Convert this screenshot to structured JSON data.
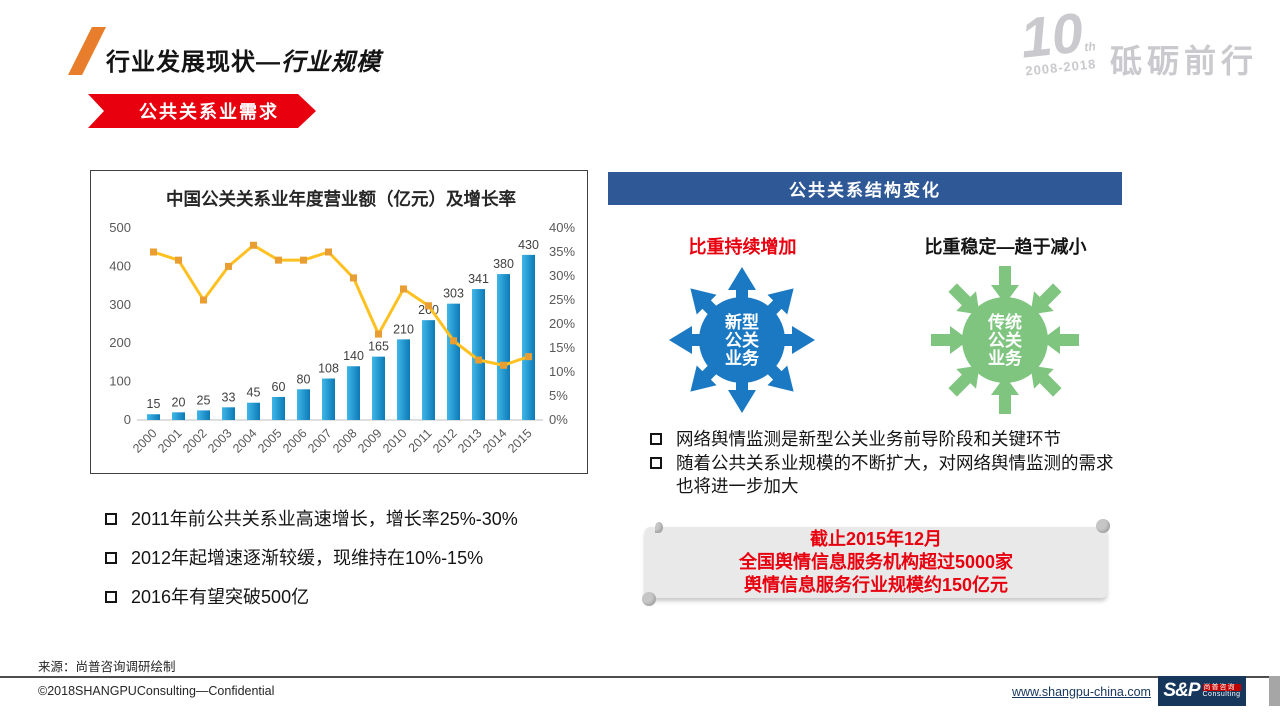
{
  "slide": {
    "title_main": "行业发展现状—",
    "title_em": "行业规模",
    "section_banner": "公共关系业需求"
  },
  "brand": {
    "anniv_number": "10",
    "anniv_suffix": "th",
    "anniv_years": "2008-2018",
    "anniv_slogan": "砥砺前行"
  },
  "chart_data": {
    "type": "bar",
    "title": "中国公关关系业年度营业额（亿元）及增长率",
    "categories": [
      "2000",
      "2001",
      "2002",
      "2003",
      "2004",
      "2005",
      "2006",
      "2007",
      "2008",
      "2009",
      "2010",
      "2011",
      "2012",
      "2013",
      "2014",
      "2015"
    ],
    "series": [
      {
        "name": "年度营业额（亿元）",
        "type": "bar",
        "values": [
          15,
          20,
          25,
          33,
          45,
          60,
          80,
          108,
          140,
          165,
          210,
          260,
          303,
          341,
          380,
          430
        ]
      },
      {
        "name": "增长率",
        "type": "line",
        "values": [
          35,
          33.3,
          25,
          32,
          36.4,
          33.3,
          33.3,
          35,
          29.6,
          17.9,
          27.3,
          23.8,
          16.5,
          12.5,
          11.4,
          13.2
        ]
      }
    ],
    "y_left": {
      "min": 0,
      "max": 500,
      "step": 100
    },
    "y_right": {
      "min": 0,
      "max": 40,
      "step": 5,
      "unit": "%"
    },
    "grid": false,
    "legend": false,
    "bar_color_start": "#3FB7E8",
    "bar_color_end": "#0C79B6",
    "line_color": "#FFC121",
    "marker_color": "#E89E33"
  },
  "left_notes": [
    "2011年前公共关系业高速增长，增长率25%-30%",
    "2012年起增速逐渐较缓，现维持在10%-15%",
    "2016年有望突破500亿"
  ],
  "structure_panel": {
    "header": "公共关系结构变化",
    "increase_label": "比重持续增加",
    "decrease_label": "比重稳定—趋于减小",
    "new_pr": {
      "lines": [
        "新型",
        "公关",
        "业务"
      ],
      "color": "#1B79C4",
      "direction": "out"
    },
    "traditional_pr": {
      "lines": [
        "传统",
        "公关",
        "业务"
      ],
      "color": "#7FC580",
      "direction": "in"
    },
    "notes": [
      "网络舆情监测是新型公关业务前导阶段和关键环节",
      "随着公共关系业规模的不断扩大，对网络舆情监测的需求也将进一步加大"
    ],
    "callout": [
      "截止2015年12月",
      "全国舆情信息服务机构超过5000家",
      "舆情信息服务行业规模约150亿元"
    ]
  },
  "footer": {
    "source": "来源：尚普咨询调研绘制",
    "copyright": "©2018SHANGPUConsulting—Confidential",
    "website": "www.shangpu-china.com",
    "logo_text": "S&P",
    "logo_cn": "尚普咨询",
    "logo_sub": "Consulting"
  },
  "colors": {
    "accent_orange": "#E87E2B",
    "accent_red": "#E8000F",
    "panel_blue": "#2F5896",
    "logo_gray": "#C9C9CE"
  }
}
